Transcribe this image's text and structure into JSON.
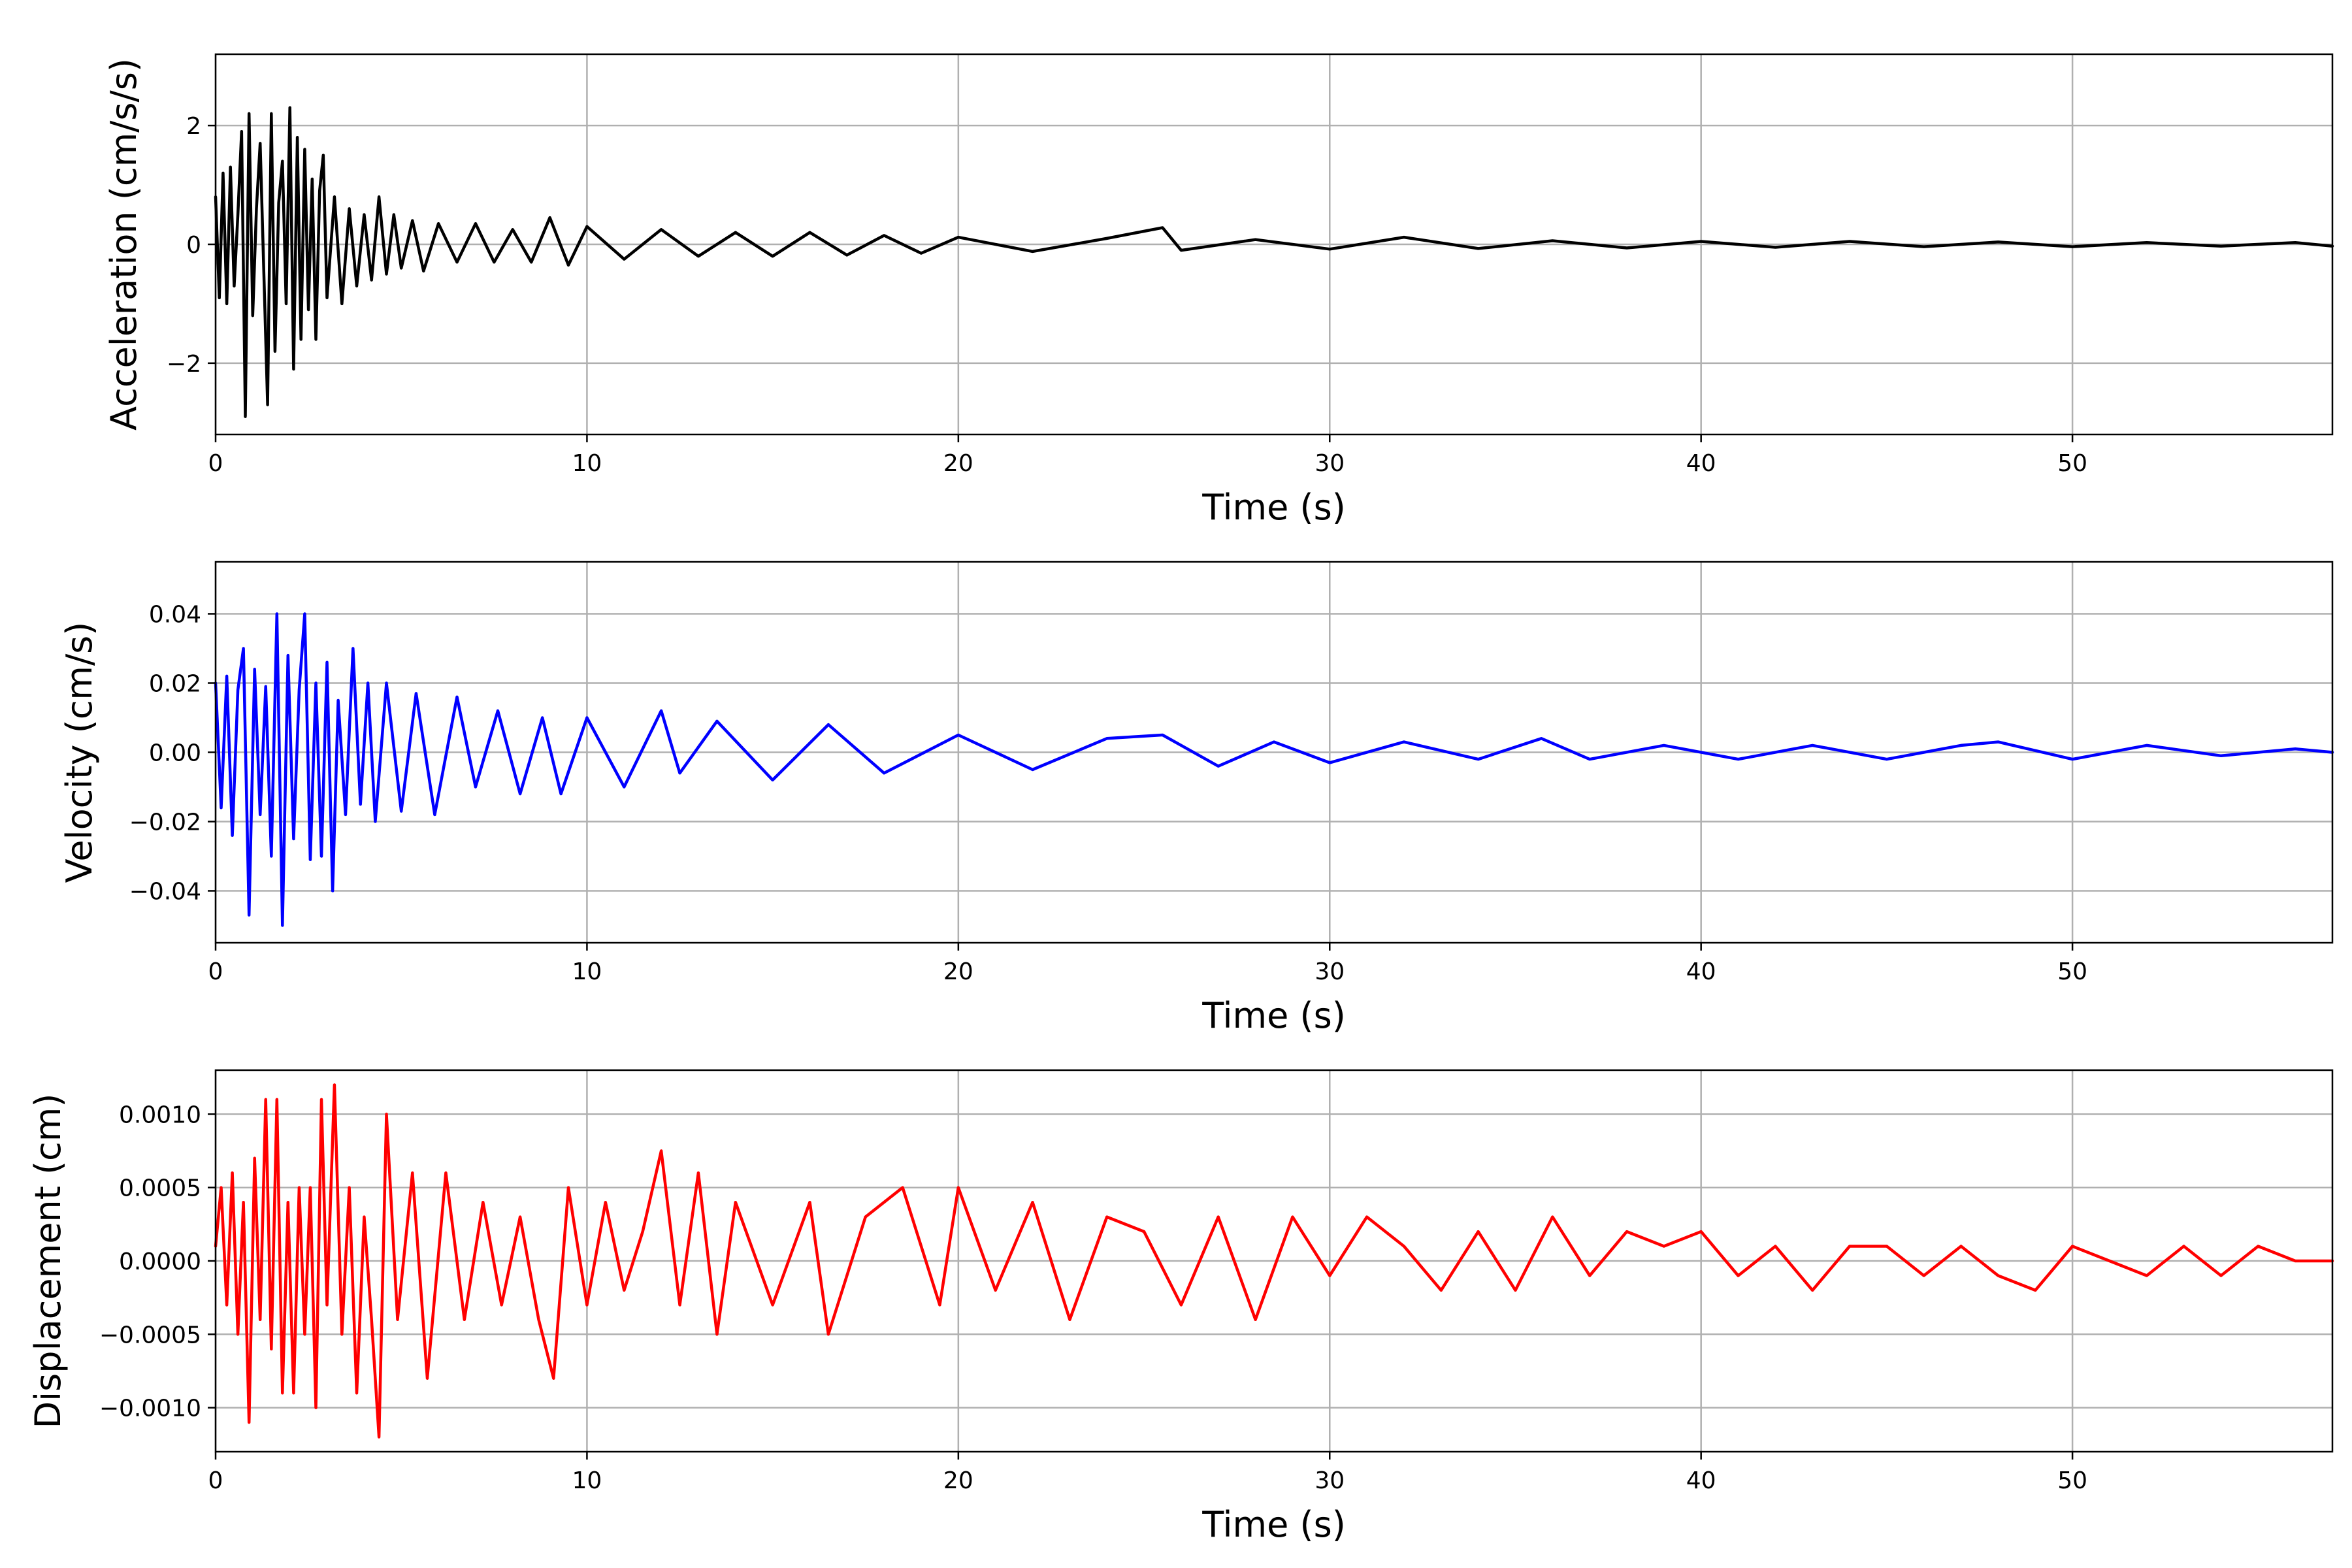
{
  "chart_data": [
    {
      "type": "line",
      "xlabel": "Time (s)",
      "ylabel": "Acceleration (cm/s/s)",
      "xlim": [
        0,
        57
      ],
      "ylim": [
        -3.2,
        3.2
      ],
      "xticks": [
        0,
        10,
        20,
        30,
        40,
        50
      ],
      "yticks": [
        -2,
        0,
        2
      ],
      "ytick_labels": [
        "−2",
        "0",
        "2"
      ],
      "grid": true,
      "series": [
        {
          "color": "#000000",
          "x": [
            0,
            0.1,
            0.2,
            0.3,
            0.4,
            0.5,
            0.6,
            0.7,
            0.8,
            0.9,
            1.0,
            1.1,
            1.2,
            1.3,
            1.4,
            1.5,
            1.6,
            1.7,
            1.8,
            1.9,
            2.0,
            2.1,
            2.2,
            2.3,
            2.4,
            2.5,
            2.6,
            2.7,
            2.8,
            2.9,
            3.0,
            3.2,
            3.4,
            3.6,
            3.8,
            4.0,
            4.2,
            4.4,
            4.6,
            4.8,
            5.0,
            5.3,
            5.6,
            6.0,
            6.5,
            7.0,
            7.5,
            8.0,
            8.5,
            9.0,
            9.5,
            10,
            11,
            12,
            13,
            14,
            15,
            16,
            17,
            18,
            19,
            20,
            22,
            24,
            25.5,
            26,
            28,
            30,
            32,
            34,
            36,
            38,
            40,
            42,
            44,
            46,
            48,
            50,
            52,
            54,
            56,
            57
          ],
          "y": [
            0.8,
            -0.9,
            1.2,
            -1.0,
            1.3,
            -0.7,
            0.5,
            1.9,
            -2.9,
            2.2,
            -1.2,
            0.6,
            1.7,
            -0.5,
            -2.7,
            2.2,
            -1.8,
            0.7,
            1.4,
            -1.0,
            2.3,
            -2.1,
            1.8,
            -1.6,
            1.6,
            -1.1,
            1.1,
            -1.6,
            0.9,
            1.5,
            -0.9,
            0.8,
            -1.0,
            0.6,
            -0.7,
            0.5,
            -0.6,
            0.8,
            -0.5,
            0.5,
            -0.4,
            0.4,
            -0.45,
            0.35,
            -0.3,
            0.35,
            -0.3,
            0.25,
            -0.3,
            0.45,
            -0.35,
            0.3,
            -0.25,
            0.25,
            -0.2,
            0.2,
            -0.2,
            0.2,
            -0.18,
            0.15,
            -0.15,
            0.12,
            -0.12,
            0.1,
            0.28,
            -0.1,
            0.08,
            -0.08,
            0.12,
            -0.07,
            0.06,
            -0.06,
            0.05,
            -0.05,
            0.05,
            -0.04,
            0.04,
            -0.04,
            0.03,
            -0.03,
            0.03,
            -0.03
          ]
        }
      ]
    },
    {
      "type": "line",
      "xlabel": "Time (s)",
      "ylabel": "Velocity (cm/s)",
      "xlim": [
        0,
        57
      ],
      "ylim": [
        -0.055,
        0.055
      ],
      "xticks": [
        0,
        10,
        20,
        30,
        40,
        50
      ],
      "yticks": [
        -0.04,
        -0.02,
        0.0,
        0.02,
        0.04
      ],
      "ytick_labels": [
        "−0.04",
        "−0.02",
        "0.00",
        "0.02",
        "0.04"
      ],
      "grid": true,
      "series": [
        {
          "color": "#0000ff",
          "x": [
            0,
            0.15,
            0.3,
            0.45,
            0.6,
            0.75,
            0.9,
            1.05,
            1.2,
            1.35,
            1.5,
            1.65,
            1.8,
            1.95,
            2.1,
            2.25,
            2.4,
            2.55,
            2.7,
            2.85,
            3.0,
            3.15,
            3.3,
            3.5,
            3.7,
            3.9,
            4.1,
            4.3,
            4.6,
            5.0,
            5.4,
            5.9,
            6.5,
            7.0,
            7.6,
            8.2,
            8.8,
            9.3,
            10,
            11,
            12,
            12.5,
            13.5,
            15,
            16.5,
            18,
            20,
            22,
            24,
            25.5,
            27,
            28.5,
            30,
            32,
            34,
            35.7,
            37,
            39,
            41,
            43,
            45,
            47,
            48,
            50,
            52,
            54,
            56,
            57
          ],
          "y": [
            0.02,
            -0.016,
            0.022,
            -0.024,
            0.018,
            0.03,
            -0.047,
            0.024,
            -0.018,
            0.019,
            -0.03,
            0.04,
            -0.05,
            0.028,
            -0.025,
            0.018,
            0.04,
            -0.031,
            0.02,
            -0.03,
            0.026,
            -0.04,
            0.015,
            -0.018,
            0.03,
            -0.015,
            0.02,
            -0.02,
            0.02,
            -0.017,
            0.017,
            -0.018,
            0.016,
            -0.01,
            0.012,
            -0.012,
            0.01,
            -0.012,
            0.01,
            -0.01,
            0.012,
            -0.006,
            0.009,
            -0.008,
            0.008,
            -0.006,
            0.005,
            -0.005,
            0.004,
            0.005,
            -0.004,
            0.003,
            -0.003,
            0.003,
            -0.002,
            0.004,
            -0.002,
            0.002,
            -0.002,
            0.002,
            -0.002,
            0.002,
            0.003,
            -0.002,
            0.002,
            -0.001,
            0.001,
            0.0
          ]
        }
      ]
    },
    {
      "type": "line",
      "xlabel": "Time (s)",
      "ylabel": "Displacement (cm)",
      "xlim": [
        0,
        57
      ],
      "ylim": [
        -0.0013,
        0.0013
      ],
      "xticks": [
        0,
        10,
        20,
        30,
        40,
        50
      ],
      "yticks": [
        -0.001,
        -0.0005,
        0.0,
        0.0005,
        0.001
      ],
      "ytick_labels": [
        "−0.0010",
        "−0.0005",
        "0.0000",
        "0.0005",
        "0.0010"
      ],
      "grid": true,
      "series": [
        {
          "color": "#ff0000",
          "x": [
            0,
            0.15,
            0.3,
            0.45,
            0.6,
            0.75,
            0.9,
            1.05,
            1.2,
            1.35,
            1.5,
            1.65,
            1.8,
            1.95,
            2.1,
            2.25,
            2.4,
            2.55,
            2.7,
            2.85,
            3.0,
            3.2,
            3.4,
            3.6,
            3.8,
            4.0,
            4.2,
            4.4,
            4.6,
            4.9,
            5.3,
            5.7,
            6.2,
            6.7,
            7.2,
            7.7,
            8.2,
            8.7,
            9.1,
            9.5,
            10,
            10.5,
            11,
            11.5,
            12,
            12.5,
            13,
            13.5,
            14,
            15,
            16,
            16.5,
            17.5,
            18.5,
            19.5,
            20,
            21,
            22,
            23,
            24,
            25,
            26,
            27,
            28,
            29,
            30,
            31,
            32,
            33,
            34,
            35,
            36,
            37,
            38,
            39,
            40,
            41,
            42,
            43,
            44,
            45,
            46,
            47,
            48,
            49,
            50,
            51,
            52,
            53,
            54,
            55,
            56,
            57
          ],
          "y": [
            0.0001,
            0.0005,
            -0.0003,
            0.0006,
            -0.0005,
            0.0004,
            -0.0011,
            0.0007,
            -0.0004,
            0.0011,
            -0.0006,
            0.0011,
            -0.0009,
            0.0004,
            -0.0009,
            0.0005,
            -0.0005,
            0.0005,
            -0.001,
            0.0011,
            -0.0003,
            0.0012,
            -0.0005,
            0.0005,
            -0.0009,
            0.0003,
            -0.0004,
            -0.0012,
            0.001,
            -0.0004,
            0.0006,
            -0.0008,
            0.0006,
            -0.0004,
            0.0004,
            -0.0003,
            0.0003,
            -0.0004,
            -0.0008,
            0.0005,
            -0.0003,
            0.0004,
            -0.0002,
            0.0002,
            0.00075,
            -0.0003,
            0.0006,
            -0.0005,
            0.0004,
            -0.0003,
            0.0004,
            -0.0005,
            0.0003,
            0.0005,
            -0.0003,
            0.0005,
            -0.0002,
            0.0004,
            -0.0004,
            0.0003,
            0.0002,
            -0.0003,
            0.0003,
            -0.0004,
            0.0003,
            -0.0001,
            0.0003,
            0.0001,
            -0.0002,
            0.0002,
            -0.0002,
            0.0003,
            -0.0001,
            0.0002,
            0.0001,
            0.0002,
            -0.0001,
            0.0001,
            -0.0002,
            0.0001,
            0.0001,
            -0.0001,
            0.0001,
            -0.0001,
            -0.0002,
            0.0001,
            0.0,
            -0.0001,
            0.0001,
            -0.0001,
            0.0001,
            0.0,
            0.0
          ]
        }
      ]
    }
  ]
}
